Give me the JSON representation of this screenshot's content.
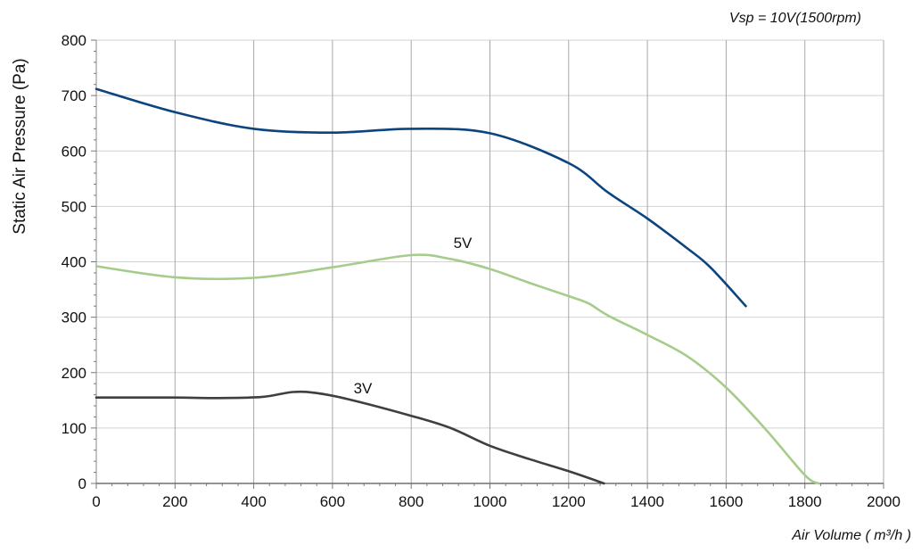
{
  "chart_data": {
    "type": "line",
    "title": "",
    "annotation": "Vsp = 10V(1500rpm)",
    "xlabel": "Air Volume ( m³/h )",
    "ylabel": "Static Air Pressure  (Pa)",
    "xlim": [
      0,
      2000
    ],
    "ylim": [
      0,
      800
    ],
    "x_ticks": [
      0,
      200,
      400,
      600,
      800,
      1000,
      1200,
      1400,
      1600,
      1800,
      2000
    ],
    "y_ticks": [
      0,
      100,
      200,
      300,
      400,
      500,
      600,
      700,
      800
    ],
    "x_tick_labels": [
      "0",
      "200",
      "400",
      "600",
      "800",
      "1000",
      "1200",
      "1400",
      "1600",
      "1800",
      "2000"
    ],
    "y_tick_labels": [
      "0",
      "100",
      "200",
      "300",
      "400",
      "500",
      "600",
      "700",
      "800"
    ],
    "grid": true,
    "series": [
      {
        "color": "#0c4480",
        "points": [
          [
            0,
            712
          ],
          [
            200,
            670
          ],
          [
            400,
            640
          ],
          [
            600,
            633
          ],
          [
            800,
            640
          ],
          [
            1000,
            632
          ],
          [
            1200,
            578
          ],
          [
            1300,
            525
          ],
          [
            1400,
            478
          ],
          [
            1500,
            425
          ],
          [
            1560,
            390
          ],
          [
            1650,
            320
          ]
        ]
      },
      {
        "name": "5V",
        "color": "#a6cc8c",
        "points": [
          [
            0,
            392
          ],
          [
            200,
            372
          ],
          [
            400,
            371
          ],
          [
            600,
            390
          ],
          [
            800,
            412
          ],
          [
            900,
            405
          ],
          [
            1000,
            387
          ],
          [
            1100,
            362
          ],
          [
            1200,
            338
          ],
          [
            1250,
            325
          ],
          [
            1300,
            303
          ],
          [
            1400,
            268
          ],
          [
            1500,
            230
          ],
          [
            1600,
            173
          ],
          [
            1700,
            98
          ],
          [
            1800,
            15
          ],
          [
            1835,
            0
          ]
        ]
      },
      {
        "name": "3V",
        "color": "#3f3f3f",
        "points": [
          [
            0,
            155
          ],
          [
            200,
            155
          ],
          [
            300,
            154
          ],
          [
            420,
            156
          ],
          [
            500,
            165
          ],
          [
            560,
            163
          ],
          [
            640,
            152
          ],
          [
            800,
            122
          ],
          [
            900,
            100
          ],
          [
            1000,
            68
          ],
          [
            1100,
            44
          ],
          [
            1200,
            22
          ],
          [
            1290,
            0
          ]
        ]
      }
    ]
  }
}
